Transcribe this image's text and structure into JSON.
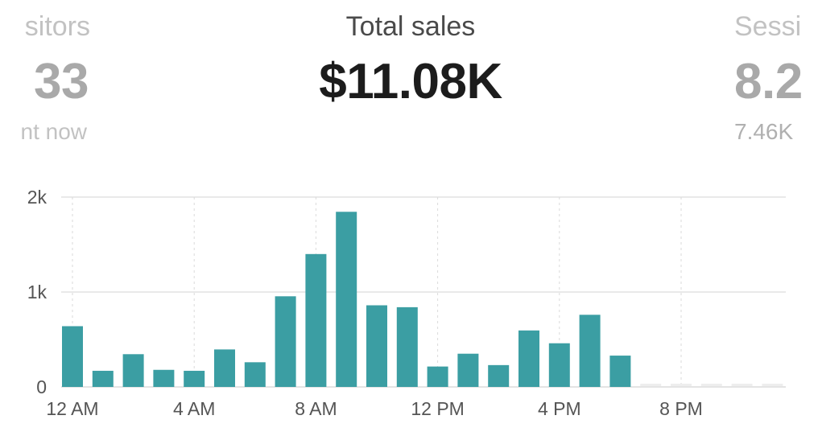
{
  "stats": {
    "left": {
      "label": "sitors",
      "value": "33",
      "sub": "nt now"
    },
    "center": {
      "label": "Total sales",
      "value": "$11.08K"
    },
    "right": {
      "label": "Sessi",
      "value": "8.2",
      "sub": "7.46K"
    }
  },
  "colors": {
    "bar": "#3b9ea3",
    "bar_empty": "#eeeeee",
    "gridline": "#e2e2e2"
  },
  "chart_data": {
    "type": "bar",
    "categories": [
      "12 AM",
      "1 AM",
      "2 AM",
      "3 AM",
      "4 AM",
      "5 AM",
      "6 AM",
      "7 AM",
      "8 AM",
      "9 AM",
      "10 AM",
      "11 AM",
      "12 PM",
      "1 PM",
      "2 PM",
      "3 PM",
      "4 PM",
      "5 PM",
      "6 PM",
      "7 PM",
      "8 PM",
      "9 PM",
      "10 PM",
      "11 PM"
    ],
    "values": [
      640,
      170,
      345,
      180,
      170,
      395,
      260,
      955,
      1400,
      1845,
      860,
      840,
      215,
      350,
      230,
      595,
      460,
      760,
      330,
      0,
      0,
      0,
      0,
      0
    ],
    "x_tick_labels": [
      "12 AM",
      "4 AM",
      "8 AM",
      "12 PM",
      "4 PM",
      "8 PM"
    ],
    "y_tick_labels": [
      "0",
      "1k",
      "2k"
    ],
    "y_ticks": [
      0,
      1000,
      2000
    ],
    "ylim": [
      0,
      2000
    ],
    "grid": true,
    "title": "",
    "xlabel": "",
    "ylabel": ""
  }
}
